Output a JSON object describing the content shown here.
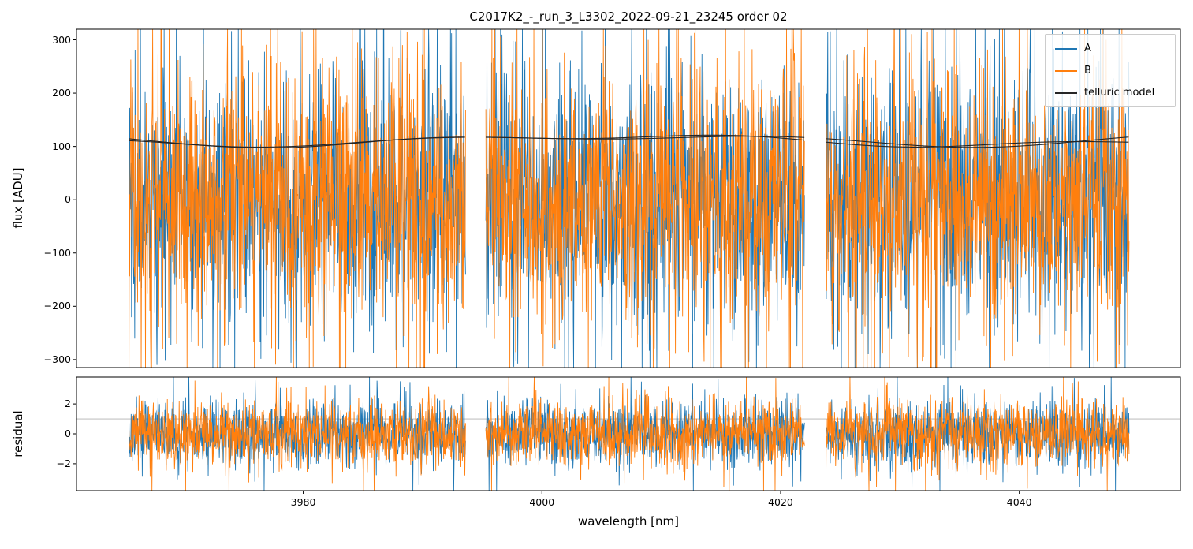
{
  "figure": {
    "title": "C2017K2_-_run_3_L3302_2022-09-21_23245  order 02",
    "xlabel": "wavelength [nm]"
  },
  "legend": {
    "entries": [
      {
        "label": "A",
        "color": "#1f77b4"
      },
      {
        "label": "B",
        "color": "#ff7f0e"
      },
      {
        "label": "telluric model",
        "color": "#262626"
      }
    ]
  },
  "chart_data": {
    "type": "line",
    "title": "C2017K2_-_run_3_L3302_2022-09-21_23245  order 02",
    "xlabel": "wavelength [nm]",
    "legend_position": "upper right",
    "seed": 20220921,
    "x": {
      "xlim": [
        3961.0,
        4053.5
      ],
      "xticks": [
        3980,
        4000,
        4020,
        4040
      ],
      "segments": [
        [
          3965.4,
          3993.6
        ],
        [
          3995.3,
          4022.0
        ],
        [
          4023.8,
          4049.2
        ]
      ]
    },
    "panels": [
      {
        "name": "flux",
        "ylabel": "flux [ADU]",
        "ylim": [
          -315,
          320
        ],
        "yticks": [
          -300,
          -200,
          -100,
          0,
          100,
          200,
          300
        ],
        "height_ratio": 3,
        "series": [
          {
            "name": "A",
            "color": "#1f77b4",
            "kind": "noise",
            "mean": 0,
            "std": 115,
            "tail_prob": 0.12,
            "tail_mult": 2.3
          },
          {
            "name": "B",
            "color": "#ff7f0e",
            "kind": "noise",
            "mean": 0,
            "std": 115,
            "tail_prob": 0.12,
            "tail_mult": 2.3
          }
        ],
        "model_curves": [
          {
            "name": "telluric model (A)",
            "color": "#262626",
            "base": 111,
            "components": [
              {
                "amp": 9,
                "period": 62,
                "phase": 3.3
              },
              {
                "amp": 5,
                "period": 26,
                "phase": 0.7
              }
            ]
          },
          {
            "name": "telluric model (B)",
            "color": "#262626",
            "base": 112,
            "components": [
              {
                "amp": 8,
                "period": 55,
                "phase": 2.6
              },
              {
                "amp": 6,
                "period": 31,
                "phase": 1.9
              }
            ]
          }
        ]
      },
      {
        "name": "residual",
        "ylabel": "residual",
        "ylim": [
          -3.8,
          3.8
        ],
        "yticks": [
          -2,
          0,
          2
        ],
        "height_ratio": 1,
        "hline": {
          "y": 1,
          "color": "#b0b0b0"
        },
        "series": [
          {
            "name": "A",
            "color": "#1f77b4",
            "kind": "noise",
            "mean": 0,
            "std": 1.05,
            "tail_prob": 0.1,
            "tail_mult": 1.9
          },
          {
            "name": "B",
            "color": "#ff7f0e",
            "kind": "noise",
            "mean": 0,
            "std": 1.05,
            "tail_prob": 0.1,
            "tail_mult": 1.9
          }
        ]
      }
    ]
  }
}
